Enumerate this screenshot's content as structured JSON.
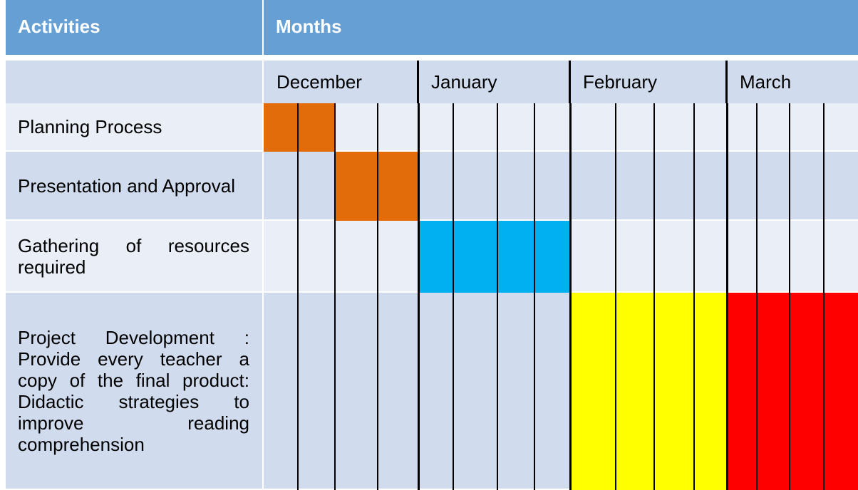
{
  "header": {
    "activities": "Activities",
    "months": "Months"
  },
  "months": [
    "December",
    "January",
    "February",
    "March"
  ],
  "rows": [
    {
      "label": "Planning Process",
      "cells": [
        "#e36c0a",
        "#e36c0a",
        null,
        null,
        null,
        null,
        null,
        null,
        null,
        null,
        null,
        null,
        null,
        null,
        null,
        null
      ]
    },
    {
      "label": "Presentation and Approval",
      "cells": [
        null,
        null,
        "#e36c0a",
        "#e36c0a",
        null,
        null,
        null,
        null,
        null,
        null,
        null,
        null,
        null,
        null,
        null,
        null
      ]
    },
    {
      "label": "Gathering of resources required",
      "cells": [
        null,
        null,
        null,
        null,
        "#00b0f0",
        "#00b0f0",
        "#00b0f0",
        "#00b0f0",
        null,
        null,
        null,
        null,
        null,
        null,
        null,
        null
      ]
    },
    {
      "label": "Project Development : Provide every teacher a copy of the final product: Didactic strategies to improve reading comprehension",
      "cells": [
        null,
        null,
        null,
        null,
        null,
        null,
        null,
        null,
        "#ffff00",
        "#ffff00",
        "#ffff00",
        "#ffff00",
        "#ff0000",
        "#ff0000",
        "#ff0000",
        "#ff0000"
      ]
    }
  ]
}
